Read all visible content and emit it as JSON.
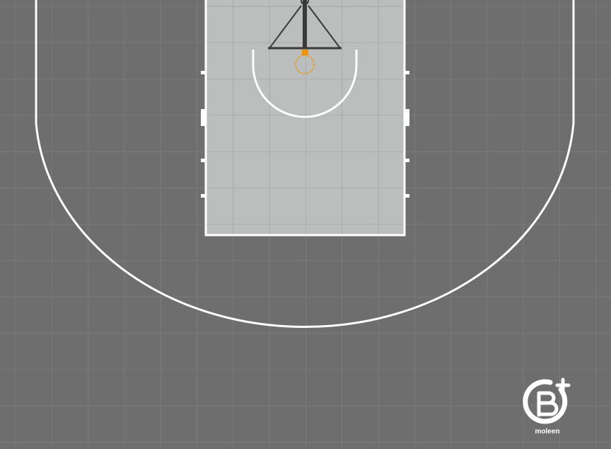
{
  "court": {
    "floor_color": "#6e6e6e",
    "tile_line_color": "#7b7b7b",
    "paint_color": "#bcbebd",
    "paint_tile_line_color": "#a9abaa",
    "line_color": "#ffffff",
    "rim_color": "#f39200",
    "backboard_support_color": "#3a3a3a"
  },
  "logo": {
    "brand_text": "moleen",
    "logo_color": "#ffffff"
  }
}
